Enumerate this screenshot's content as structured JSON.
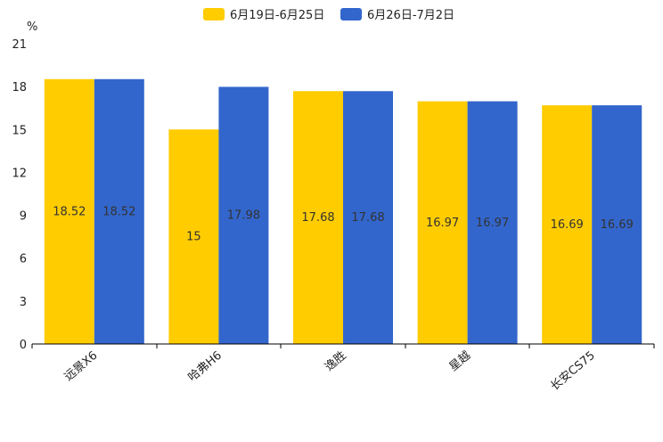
{
  "chart_data": {
    "type": "bar",
    "title": "",
    "xlabel": "",
    "ylabel": "%",
    "ylim": [
      0,
      21
    ],
    "yticks": [
      0,
      3,
      6,
      9,
      12,
      15,
      18,
      21
    ],
    "categories": [
      "远景X6",
      "哈弗H6",
      "逸胜",
      "星越",
      "长安CS75"
    ],
    "series": [
      {
        "name": "6月19日-6月25日",
        "color": "#FFCC00",
        "values": [
          18.52,
          15,
          17.68,
          16.97,
          16.69
        ],
        "labels": [
          "18.52",
          "15",
          "17.68",
          "16.97",
          "16.69"
        ]
      },
      {
        "name": "6月26日-7月2日",
        "color": "#3366CC",
        "values": [
          18.52,
          17.98,
          17.68,
          16.97,
          16.69
        ],
        "labels": [
          "18.52",
          "17.98",
          "17.68",
          "16.97",
          "16.69"
        ]
      }
    ],
    "legend_position": "top-center",
    "grid": false
  }
}
